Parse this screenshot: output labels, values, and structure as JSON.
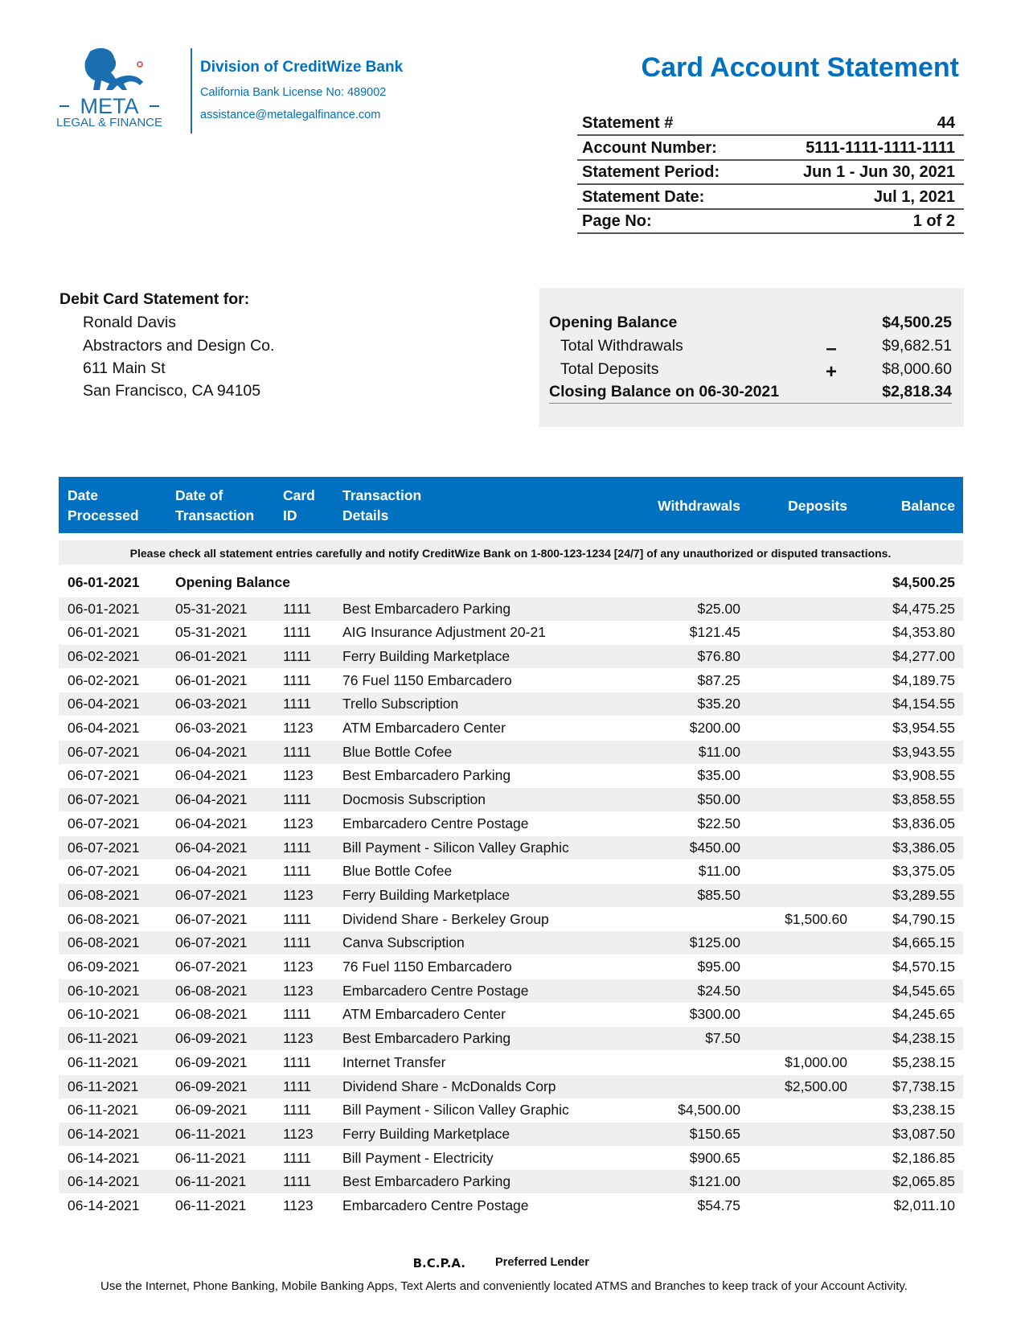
{
  "header": {
    "logo_name": "META",
    "logo_sub": "LEGAL & FINANCE",
    "division": "Division of CreditWize Bank",
    "license": "California Bank License No: 489002",
    "email": "assistance@metalegalfinance.com",
    "title": "Card Account Statement"
  },
  "statement_info": [
    [
      "Statement #",
      "44"
    ],
    [
      "Account Number:",
      "5111-1111-1111-1111"
    ],
    [
      "Statement Period:",
      "Jun 1 - Jun 30, 2021"
    ],
    [
      "Statement Date:",
      "Jul 1, 2021"
    ],
    [
      "Page No:",
      "1 of 2"
    ]
  ],
  "customer": {
    "heading": "Debit Card Statement for:",
    "lines": [
      "Ronald Davis",
      "Abstractors and Design Co.",
      "611 Main St",
      "San Francisco, CA 94105"
    ]
  },
  "summary": {
    "opening": {
      "label": "Opening Balance",
      "value": "$4,500.25"
    },
    "withdrawals": {
      "label": "Total Withdrawals",
      "sign": "–",
      "value": "$9,682.51"
    },
    "deposits": {
      "label": "Total Deposits",
      "sign": "+",
      "value": "$8,000.60"
    },
    "closing": {
      "label": "Closing Balance on 06-30-2021",
      "value": "$2,818.34"
    }
  },
  "table": {
    "headers": [
      [
        "Date",
        "Processed"
      ],
      [
        "Date of",
        "Transaction"
      ],
      [
        "Card",
        "ID"
      ],
      [
        "Transaction",
        "Details"
      ],
      [
        "Withdrawals"
      ],
      [
        "Deposits"
      ],
      [
        "Balance"
      ]
    ],
    "notice": "Please check all statement entries carefully and notify CreditWize Bank on 1-800-123-1234 [24/7] of any unauthorized or disputed transactions.",
    "opening": {
      "date": "06-01-2021",
      "label": "Opening Balance",
      "balance": "$4,500.25"
    },
    "rows": [
      [
        "06-01-2021",
        "05-31-2021",
        "1111",
        "Best Embarcadero Parking",
        "$25.00",
        null,
        "$4,475.25"
      ],
      [
        "06-01-2021",
        "05-31-2021",
        "1111",
        "AIG Insurance Adjustment  20-21",
        "$121.45",
        null,
        "$4,353.80"
      ],
      [
        "06-02-2021",
        "06-01-2021",
        "1111",
        "Ferry Building Marketplace",
        "$76.80",
        null,
        "$4,277.00"
      ],
      [
        "06-02-2021",
        "06-01-2021",
        "1111",
        "76 Fuel  1150 Embarcadero",
        "$87.25",
        null,
        "$4,189.75"
      ],
      [
        "06-04-2021",
        "06-03-2021",
        "1111",
        "Trello Subscription",
        "$35.20",
        null,
        "$4,154.55"
      ],
      [
        "06-04-2021",
        "06-03-2021",
        "1123",
        "ATM Embarcadero Center",
        "$200.00",
        null,
        "$3,954.55"
      ],
      [
        "06-07-2021",
        "06-04-2021",
        "1111",
        "Blue Bottle Cofee",
        "$11.00",
        null,
        "$3,943.55"
      ],
      [
        "06-07-2021",
        "06-04-2021",
        "1123",
        "Best Embarcadero Parking",
        "$35.00",
        null,
        "$3,908.55"
      ],
      [
        "06-07-2021",
        "06-04-2021",
        "1111",
        "Docmosis Subscription",
        "$50.00",
        null,
        "$3,858.55"
      ],
      [
        "06-07-2021",
        "06-04-2021",
        "1123",
        "Embarcadero Centre Postage",
        "$22.50",
        null,
        "$3,836.05"
      ],
      [
        "06-07-2021",
        "06-04-2021",
        "1111",
        "Bill Payment - Silicon Valley Graphic",
        "$450.00",
        null,
        "$3,386.05"
      ],
      [
        "06-07-2021",
        "06-04-2021",
        "1111",
        "Blue Bottle Cofee",
        "$11.00",
        null,
        "$3,375.05"
      ],
      [
        "06-08-2021",
        "06-07-2021",
        "1123",
        "Ferry Building Marketplace",
        "$85.50",
        null,
        "$3,289.55"
      ],
      [
        "06-08-2021",
        "06-07-2021",
        "1111",
        "Dividend Share - Berkeley Group",
        null,
        "$1,500.60",
        "$4,790.15"
      ],
      [
        "06-08-2021",
        "06-07-2021",
        "1111",
        "Canva Subscription",
        "$125.00",
        null,
        "$4,665.15"
      ],
      [
        "06-09-2021",
        "06-07-2021",
        "1123",
        "76 Fuel  1150 Embarcadero",
        "$95.00",
        null,
        "$4,570.15"
      ],
      [
        "06-10-2021",
        "06-08-2021",
        "1123",
        "Embarcadero Centre Postage",
        "$24.50",
        null,
        "$4,545.65"
      ],
      [
        "06-10-2021",
        "06-08-2021",
        "1111",
        "ATM Embarcadero Center",
        "$300.00",
        null,
        "$4,245.65"
      ],
      [
        "06-11-2021",
        "06-09-2021",
        "1123",
        "Best Embarcadero Parking",
        "$7.50",
        null,
        "$4,238.15"
      ],
      [
        "06-11-2021",
        "06-09-2021",
        "1111",
        "Internet Transfer",
        null,
        "$1,000.00",
        "$5,238.15"
      ],
      [
        "06-11-2021",
        "06-09-2021",
        "1111",
        "Dividend Share - McDonalds Corp",
        null,
        "$2,500.00",
        "$7,738.15"
      ],
      [
        "06-11-2021",
        "06-09-2021",
        "1111",
        "Bill Payment - Silicon Valley Graphic",
        "$4,500.00",
        null,
        "$3,238.15"
      ],
      [
        "06-14-2021",
        "06-11-2021",
        "1123",
        "Ferry Building Marketplace",
        "$150.65",
        null,
        "$3,087.50"
      ],
      [
        "06-14-2021",
        "06-11-2021",
        "1111",
        "Bill Payment - Electricity",
        "$900.65",
        null,
        "$2,186.85"
      ],
      [
        "06-14-2021",
        "06-11-2021",
        "1111",
        "Best Embarcadero Parking",
        "$121.00",
        null,
        "$2,065.85"
      ],
      [
        "06-14-2021",
        "06-11-2021",
        "1123",
        "Embarcadero Centre Postage",
        "$54.75",
        null,
        "$2,011.10"
      ]
    ]
  },
  "footer": {
    "bcpa": "B.C.P.A.",
    "preferred": "Preferred Lender",
    "text": "Use the Internet, Phone Banking, Mobile Banking Apps, Text Alerts and conveniently located ATMS and Branches to keep track of your Account Activity."
  }
}
